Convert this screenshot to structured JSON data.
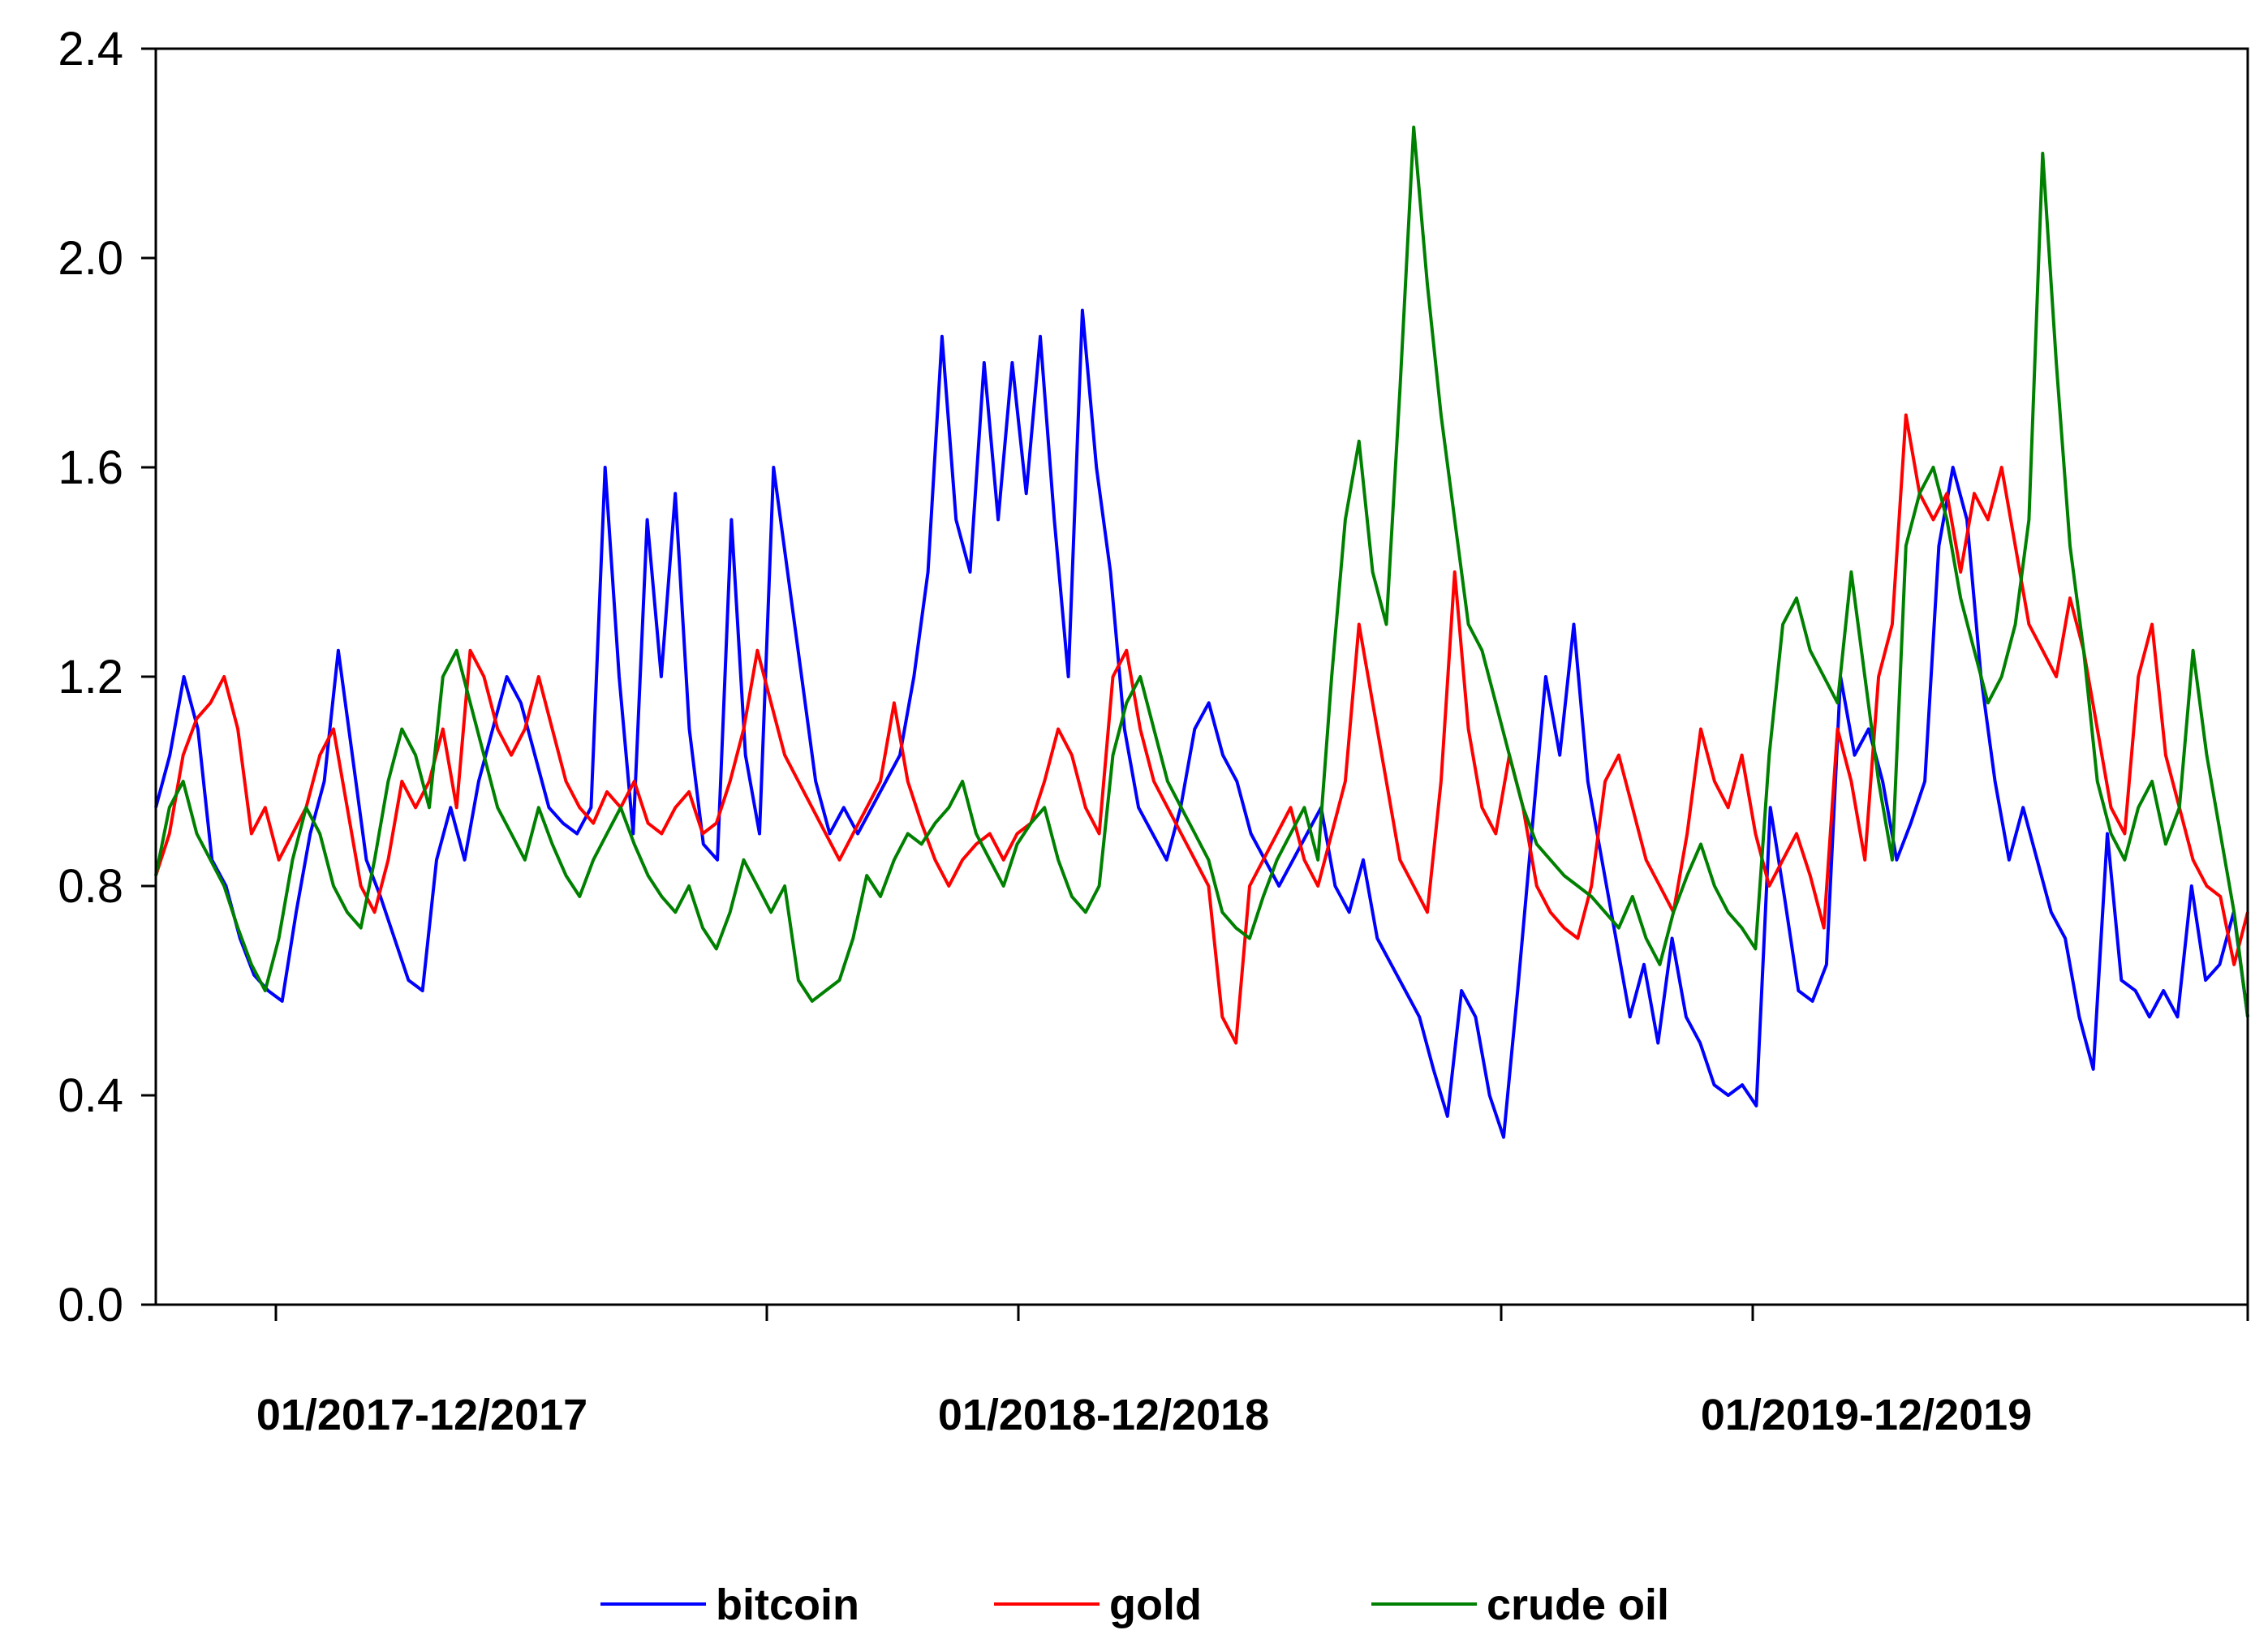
{
  "chart_data": {
    "type": "line",
    "title": "",
    "xlabel": "",
    "ylabel": "",
    "ylim": [
      0.0,
      2.4
    ],
    "yticks": [
      "0.0",
      "0.4",
      "0.8",
      "1.2",
      "1.6",
      "2.0",
      "2.4"
    ],
    "period_labels": [
      "01/2017-12/2017",
      "01/2018-12/2018",
      "01/2019-12/2019"
    ],
    "grid": false,
    "legend_position": "bottom",
    "x_range": [
      0,
      130
    ],
    "series": [
      {
        "name": "bitcoin",
        "color": "#0000ff",
        "values": [
          0.95,
          1.05,
          1.2,
          1.1,
          0.85,
          0.8,
          0.7,
          0.63,
          0.6,
          0.58,
          0.75,
          0.9,
          1.0,
          1.25,
          1.05,
          0.85,
          0.78,
          0.7,
          0.62,
          0.6,
          0.85,
          0.95,
          0.85,
          1.0,
          1.1,
          1.2,
          1.15,
          1.05,
          0.95,
          0.92,
          0.9,
          0.95,
          1.6,
          1.2,
          0.9,
          1.5,
          1.2,
          1.55,
          1.1,
          0.88,
          0.85,
          1.5,
          1.05,
          0.9,
          1.6,
          1.4,
          1.2,
          1.0,
          0.9,
          0.95,
          0.9,
          0.95,
          1.0,
          1.05,
          1.2,
          1.4,
          1.85,
          1.5,
          1.4,
          1.8,
          1.5,
          1.8,
          1.55,
          1.85,
          1.5,
          1.2,
          1.9,
          1.6,
          1.4,
          1.1,
          0.95,
          0.9,
          0.85,
          0.95,
          1.1,
          1.15,
          1.05,
          1.0,
          0.9,
          0.85,
          0.8,
          0.85,
          0.9,
          0.95,
          0.8,
          0.75,
          0.85,
          0.7,
          0.65,
          0.6,
          0.55,
          0.45,
          0.36,
          0.6,
          0.55,
          0.4,
          0.32,
          0.6,
          0.9,
          1.2,
          1.05,
          1.3,
          1.0,
          0.85,
          0.7,
          0.55,
          0.65,
          0.5,
          0.7,
          0.55,
          0.5,
          0.42,
          0.4,
          0.42,
          0.38,
          0.95,
          0.78,
          0.6,
          0.58,
          0.65,
          1.2,
          1.05,
          1.1,
          1.0,
          0.85,
          0.92,
          1.0,
          1.45,
          1.6,
          1.5,
          1.2,
          1.0,
          0.85,
          0.95,
          0.85,
          0.75,
          0.7,
          0.55,
          0.45,
          0.9,
          0.62,
          0.6,
          0.55,
          0.6,
          0.55,
          0.8,
          0.62,
          0.65,
          0.75,
          0.55
        ]
      },
      {
        "name": "gold",
        "color": "#ff0000",
        "values": [
          0.82,
          0.9,
          1.05,
          1.12,
          1.15,
          1.2,
          1.1,
          0.9,
          0.95,
          0.85,
          0.9,
          0.95,
          1.05,
          1.1,
          0.95,
          0.8,
          0.75,
          0.85,
          1.0,
          0.95,
          1.0,
          1.1,
          0.95,
          1.25,
          1.2,
          1.1,
          1.05,
          1.1,
          1.2,
          1.1,
          1.0,
          0.95,
          0.92,
          0.98,
          0.95,
          1.0,
          0.92,
          0.9,
          0.95,
          0.98,
          0.9,
          0.92,
          1.0,
          1.1,
          1.25,
          1.15,
          1.05,
          1.0,
          0.95,
          0.9,
          0.85,
          0.9,
          0.95,
          1.0,
          1.15,
          1.0,
          0.92,
          0.85,
          0.8,
          0.85,
          0.88,
          0.9,
          0.85,
          0.9,
          0.92,
          1.0,
          1.1,
          1.05,
          0.95,
          0.9,
          1.2,
          1.25,
          1.1,
          1.0,
          0.95,
          0.9,
          0.85,
          0.8,
          0.55,
          0.5,
          0.8,
          0.85,
          0.9,
          0.95,
          0.85,
          0.8,
          0.9,
          1.0,
          1.3,
          1.15,
          1.0,
          0.85,
          0.8,
          0.75,
          1.0,
          1.4,
          1.1,
          0.95,
          0.9,
          1.05,
          0.95,
          0.8,
          0.75,
          0.72,
          0.7,
          0.8,
          1.0,
          1.05,
          0.95,
          0.85,
          0.8,
          0.75,
          0.9,
          1.1,
          1.0,
          0.95,
          1.05,
          0.9,
          0.8,
          0.85,
          0.9,
          0.82,
          0.72,
          1.1,
          1.0,
          0.85,
          1.2,
          1.3,
          1.7,
          1.55,
          1.5,
          1.55,
          1.4,
          1.55,
          1.5,
          1.6,
          1.45,
          1.3,
          1.25,
          1.2,
          1.35,
          1.25,
          1.1,
          0.95,
          0.9,
          1.2,
          1.3,
          1.05,
          0.95,
          0.85,
          0.8,
          0.78,
          0.65,
          0.75
        ]
      },
      {
        "name": "crude oil",
        "color": "#008000",
        "values": [
          0.82,
          0.95,
          1.0,
          0.9,
          0.85,
          0.8,
          0.72,
          0.65,
          0.6,
          0.7,
          0.85,
          0.95,
          0.9,
          0.8,
          0.75,
          0.72,
          0.85,
          1.0,
          1.1,
          1.05,
          0.95,
          1.2,
          1.25,
          1.15,
          1.05,
          0.95,
          0.9,
          0.85,
          0.95,
          0.88,
          0.82,
          0.78,
          0.85,
          0.9,
          0.95,
          0.88,
          0.82,
          0.78,
          0.75,
          0.8,
          0.72,
          0.68,
          0.75,
          0.85,
          0.8,
          0.75,
          0.8,
          0.62,
          0.58,
          0.6,
          0.62,
          0.7,
          0.82,
          0.78,
          0.85,
          0.9,
          0.88,
          0.92,
          0.95,
          1.0,
          0.9,
          0.85,
          0.8,
          0.88,
          0.92,
          0.95,
          0.85,
          0.78,
          0.75,
          0.8,
          1.05,
          1.15,
          1.2,
          1.1,
          1.0,
          0.95,
          0.9,
          0.85,
          0.75,
          0.72,
          0.7,
          0.78,
          0.85,
          0.9,
          0.95,
          0.85,
          1.2,
          1.5,
          1.65,
          1.4,
          1.3,
          1.75,
          2.25,
          1.95,
          1.7,
          1.5,
          1.3,
          1.25,
          1.15,
          1.05,
          0.95,
          0.88,
          0.85,
          0.82,
          0.8,
          0.78,
          0.75,
          0.72,
          0.78,
          0.7,
          0.65,
          0.75,
          0.82,
          0.88,
          0.8,
          0.75,
          0.72,
          0.68,
          1.05,
          1.3,
          1.35,
          1.25,
          1.2,
          1.15,
          1.4,
          1.2,
          1.0,
          0.85,
          1.45,
          1.55,
          1.6,
          1.5,
          1.35,
          1.25,
          1.15,
          1.2,
          1.3,
          1.5,
          2.2,
          1.8,
          1.45,
          1.25,
          1.0,
          0.9,
          0.85,
          0.95,
          1.0,
          0.88,
          0.95,
          1.25,
          1.05,
          0.9,
          0.75,
          0.55
        ]
      }
    ]
  }
}
